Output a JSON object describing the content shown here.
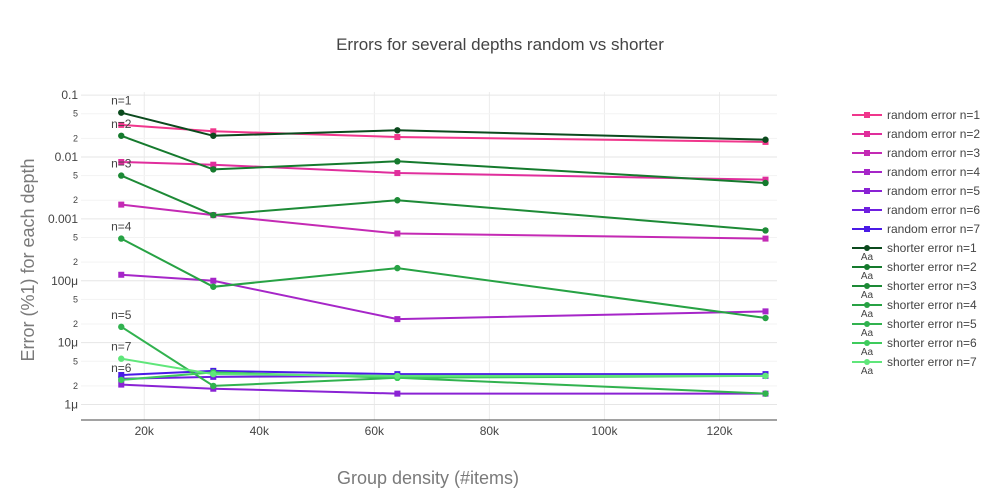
{
  "chart_data": {
    "type": "line",
    "title": "Errors for several depths random vs shorter",
    "xlabel": "Group density (#items)",
    "ylabel": "Error (%1) for each depth",
    "y_scale": "log",
    "xlim": [
      9000,
      130000
    ],
    "ylim_log10": [
      -6.25,
      -0.95
    ],
    "x": [
      16000,
      32000,
      64000,
      128000
    ],
    "x_ticks": [
      {
        "value": 20000,
        "label": "20k"
      },
      {
        "value": 40000,
        "label": "40k"
      },
      {
        "value": 60000,
        "label": "60k"
      },
      {
        "value": 80000,
        "label": "80k"
      },
      {
        "value": 100000,
        "label": "100k"
      },
      {
        "value": 120000,
        "label": "120k"
      }
    ],
    "y_major_ticks": [
      {
        "value": 0.1,
        "label": "0.1"
      },
      {
        "value": 0.01,
        "label": "0.01"
      },
      {
        "value": 0.001,
        "label": "0.001"
      },
      {
        "value": 0.0001,
        "label": "100μ"
      },
      {
        "value": 1e-05,
        "label": "10μ"
      },
      {
        "value": 1e-06,
        "label": "1μ"
      }
    ],
    "y_minor_ticks": [
      {
        "value": 0.05,
        "label": "5"
      },
      {
        "value": 0.02,
        "label": "2"
      },
      {
        "value": 0.005,
        "label": "5"
      },
      {
        "value": 0.002,
        "label": "2"
      },
      {
        "value": 0.0005,
        "label": "5"
      },
      {
        "value": 0.0002,
        "label": "2"
      },
      {
        "value": 5e-05,
        "label": "5"
      },
      {
        "value": 2e-05,
        "label": "2"
      },
      {
        "value": 5e-06,
        "label": "5"
      },
      {
        "value": 2e-06,
        "label": "2"
      }
    ],
    "series": [
      {
        "name": "random error n=1",
        "color": "#f0368c",
        "marker": "square",
        "values": [
          0.033,
          0.026,
          0.021,
          0.0175
        ]
      },
      {
        "name": "random error n=2",
        "color": "#e02e9c",
        "marker": "square",
        "values": [
          0.0083,
          0.0075,
          0.0055,
          0.0043
        ]
      },
      {
        "name": "random error n=3",
        "color": "#c42ab4",
        "marker": "square",
        "values": [
          0.0017,
          0.00115,
          0.00058,
          0.00048
        ]
      },
      {
        "name": "random error n=4",
        "color": "#a626c8",
        "marker": "square",
        "values": [
          0.000125,
          0.0001,
          2.4e-05,
          3.2e-05
        ]
      },
      {
        "name": "random error n=5",
        "color": "#8a22d4",
        "marker": "square",
        "values": [
          2.1e-06,
          1.8e-06,
          1.5e-06,
          1.5e-06
        ]
      },
      {
        "name": "random error n=6",
        "color": "#6f1fe0",
        "marker": "square",
        "values": [
          2.6e-06,
          2.8e-06,
          2.9e-06,
          2.9e-06
        ]
      },
      {
        "name": "random error n=7",
        "color": "#4a1ae6",
        "marker": "square",
        "values": [
          3e-06,
          3.5e-06,
          3.1e-06,
          3.1e-06
        ]
      },
      {
        "name": "shorter error n=1",
        "color": "#0b4a1d",
        "marker": "circle",
        "values": [
          0.052,
          0.022,
          0.027,
          0.019
        ]
      },
      {
        "name": "shorter error n=2",
        "color": "#157a2d",
        "marker": "circle",
        "values": [
          0.022,
          0.0063,
          0.0085,
          0.0038
        ]
      },
      {
        "name": "shorter error n=3",
        "color": "#1d8a36",
        "marker": "circle",
        "values": [
          0.005,
          0.00115,
          0.002,
          0.00065
        ]
      },
      {
        "name": "shorter error n=4",
        "color": "#27a244",
        "marker": "circle",
        "values": [
          0.00048,
          8e-05,
          0.00016,
          2.5e-05
        ]
      },
      {
        "name": "shorter error n=5",
        "color": "#31b24f",
        "marker": "circle",
        "values": [
          1.8e-05,
          2e-06,
          2.7e-06,
          1.5e-06
        ]
      },
      {
        "name": "shorter error n=6",
        "color": "#3ecb5c",
        "marker": "circle",
        "values": [
          2.5e-06,
          3.3e-06,
          2.7e-06,
          2.9e-06
        ]
      },
      {
        "name": "shorter error n=7",
        "color": "#5fe67a",
        "marker": "circle",
        "values": [
          5.5e-06,
          3.1e-06,
          2.9e-06,
          2.9e-06
        ]
      }
    ],
    "annotations": [
      {
        "text": "n=1",
        "x": 16000,
        "y": 0.052
      },
      {
        "text": "n=2",
        "x": 16000,
        "y": 0.022
      },
      {
        "text": "n=3",
        "x": 16000,
        "y": 0.005
      },
      {
        "text": "n=4",
        "x": 16000,
        "y": 0.00048
      },
      {
        "text": "n=5",
        "x": 16000,
        "y": 1.8e-05
      },
      {
        "text": "n=7",
        "x": 16000,
        "y": 5.5e-06
      },
      {
        "text": "n=6",
        "x": 16000,
        "y": 2.5e-06
      }
    ],
    "legend": {
      "position": "right",
      "marker_note": "Aa"
    },
    "grid": true
  }
}
